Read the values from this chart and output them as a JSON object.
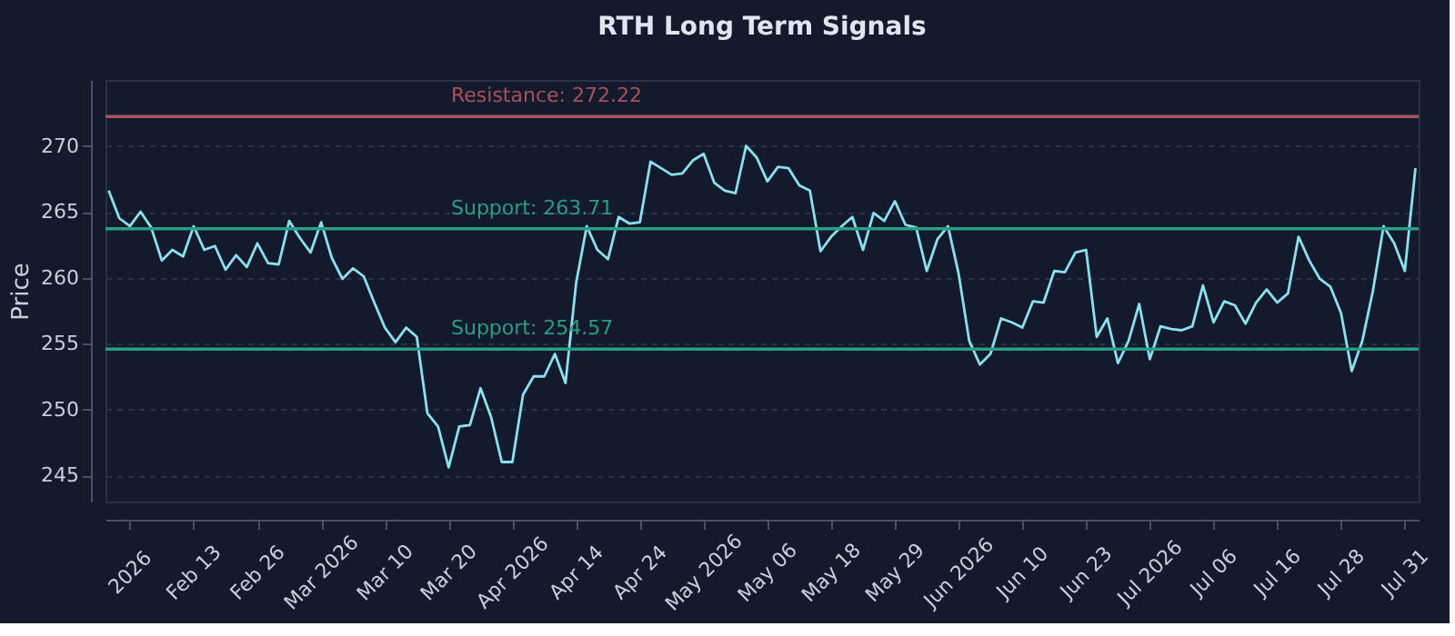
{
  "chart_data": {
    "type": "line",
    "title": "RTH Long Term Signals",
    "ylabel": "Price",
    "categories": [
      null,
      null,
      "2026",
      null,
      null,
      null,
      null,
      null,
      "Feb 13",
      null,
      null,
      null,
      null,
      null,
      "Feb 26",
      null,
      null,
      null,
      null,
      null,
      "Mar 2026",
      null,
      null,
      null,
      null,
      null,
      "Mar 10",
      null,
      null,
      null,
      null,
      null,
      "Mar 20",
      null,
      null,
      null,
      null,
      null,
      "Apr 2026",
      null,
      null,
      null,
      null,
      null,
      "Apr 14",
      null,
      null,
      null,
      null,
      null,
      "Apr 24",
      null,
      null,
      null,
      null,
      null,
      "May 2026",
      null,
      null,
      null,
      null,
      null,
      "May 06",
      null,
      null,
      null,
      null,
      null,
      "May 18",
      null,
      null,
      null,
      null,
      null,
      "May 29",
      null,
      null,
      null,
      null,
      null,
      "Jun 2026",
      null,
      null,
      null,
      null,
      null,
      "Jun 10",
      null,
      null,
      null,
      null,
      null,
      "Jun 23",
      null,
      null,
      null,
      null,
      null,
      "Jul 2026",
      null,
      null,
      null,
      null,
      null,
      "Jul 06",
      null,
      null,
      null,
      null,
      null,
      "Jul 16",
      null,
      null,
      null,
      null,
      null,
      "Jul 28",
      null,
      null,
      null,
      null,
      null,
      "Jul 31",
      null
    ],
    "series": [
      {
        "color": "#8be0f0",
        "values": [
          266.6,
          264.5,
          263.9,
          265.0,
          263.8,
          261.3,
          262.1,
          261.6,
          263.9,
          262.1,
          262.4,
          260.6,
          261.7,
          260.8,
          262.6,
          261.1,
          261.0,
          264.3,
          263.0,
          261.9,
          264.2,
          261.5,
          259.9,
          260.7,
          260.1,
          258.1,
          256.2,
          255.1,
          256.2,
          255.5,
          249.7,
          248.7,
          245.6,
          248.7,
          248.8,
          251.6,
          249.4,
          246.0,
          246.0,
          251.1,
          252.5,
          252.5,
          254.2,
          252.0,
          259.6,
          263.9,
          262.1,
          261.4,
          264.6,
          264.1,
          264.2,
          268.8,
          268.3,
          267.8,
          267.9,
          268.9,
          269.4,
          267.2,
          266.6,
          266.4,
          270.0,
          269.1,
          267.3,
          268.4,
          268.3,
          267.0,
          266.6,
          262.0,
          263.1,
          263.9,
          264.6,
          262.1,
          264.9,
          264.3,
          265.8,
          264.0,
          263.8,
          260.5,
          262.9,
          263.9,
          260.3,
          255.2,
          253.4,
          254.2,
          256.9,
          256.6,
          256.2,
          258.2,
          258.1,
          260.5,
          260.4,
          261.9,
          262.1,
          255.5,
          256.9,
          253.5,
          255.2,
          258.0,
          253.8,
          256.3,
          256.1,
          256.0,
          256.3,
          259.4,
          256.6,
          258.2,
          257.9,
          256.5,
          258.1,
          259.1,
          258.1,
          258.8,
          263.1,
          261.3,
          259.9,
          259.3,
          257.3,
          252.9,
          255.2,
          259.0,
          263.9,
          262.6,
          260.5,
          268.3
        ]
      }
    ],
    "ylim": [
      243,
      275
    ],
    "yticks": [
      245,
      250,
      255,
      260,
      265,
      270
    ],
    "grid": "y",
    "ref_lines": [
      {
        "axis": "y",
        "value": 272.22,
        "label": "Resistance: 272.22",
        "color": "#a8525c"
      },
      {
        "axis": "y",
        "value": 263.71,
        "label": "Support: 263.71",
        "color": "#2a9d84"
      },
      {
        "axis": "y",
        "value": 254.57,
        "label": "Support: 254.57",
        "color": "#2a9d84"
      }
    ]
  }
}
